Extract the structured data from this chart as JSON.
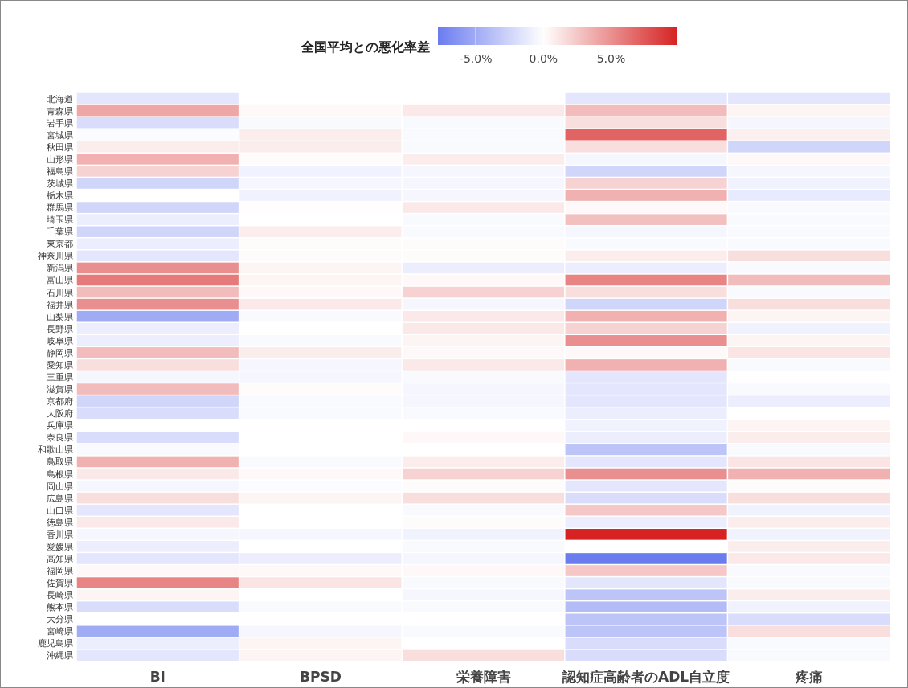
{
  "chart_data": {
    "type": "heatmap",
    "clabel": "全国平均との悪化率差",
    "categories": [
      "BI",
      "BPSD",
      "栄養障害",
      "認知症高齢者のADL自立度",
      "疼痛"
    ],
    "y_categories": [
      "北海道",
      "青森県",
      "岩手県",
      "宮城県",
      "秋田県",
      "山形県",
      "福島県",
      "茨城県",
      "栃木県",
      "群馬県",
      "埼玉県",
      "千葉県",
      "東京都",
      "神奈川県",
      "新潟県",
      "富山県",
      "石川県",
      "福井県",
      "山梨県",
      "長野県",
      "岐阜県",
      "静岡県",
      "愛知県",
      "三重県",
      "滋賀県",
      "京都府",
      "大阪府",
      "兵庫県",
      "奈良県",
      "和歌山県",
      "鳥取県",
      "島根県",
      "岡山県",
      "広島県",
      "山口県",
      "徳島県",
      "香川県",
      "愛媛県",
      "高知県",
      "福岡県",
      "佐賀県",
      "長崎県",
      "熊本県",
      "大分県",
      "宮崎県",
      "鹿児島県",
      "沖縄県"
    ],
    "cells": [
      [
        -1.5,
        0,
        0,
        -1.5,
        -1.5
      ],
      [
        4,
        0.3,
        1,
        3,
        0.5
      ],
      [
        -2,
        -0.3,
        -0.3,
        1.5,
        -0.5
      ],
      [
        -0.2,
        0.8,
        -0.3,
        7,
        0.7
      ],
      [
        0.8,
        0.8,
        -0.3,
        1.5,
        -2.5
      ],
      [
        3.5,
        0.2,
        0.8,
        -0.5,
        0.3
      ],
      [
        2,
        -0.8,
        -0.5,
        -2.5,
        -0.5
      ],
      [
        -2.5,
        -0.5,
        -0.5,
        2,
        -0.8
      ],
      [
        0,
        -0.8,
        -0.5,
        3.5,
        -1.2
      ],
      [
        -2.5,
        0.1,
        1,
        0.3,
        -0.3
      ],
      [
        -1,
        0,
        -0.3,
        2.8,
        -0.3
      ],
      [
        -2.5,
        0.8,
        -0.3,
        -0.5,
        -0.3
      ],
      [
        -1,
        0.2,
        0.2,
        -0.3,
        -0.3
      ],
      [
        -1.5,
        0.2,
        0.2,
        0.8,
        1.5
      ],
      [
        5,
        0.5,
        -1,
        -1,
        -0.3
      ],
      [
        6,
        0.5,
        0.3,
        5.5,
        3
      ],
      [
        3,
        0.3,
        2,
        1.5,
        -0.3
      ],
      [
        5,
        1,
        -0.5,
        -2.5,
        1.5
      ],
      [
        -5,
        -0.3,
        1,
        3.5,
        0.5
      ],
      [
        -1,
        0,
        1,
        2,
        -0.8
      ],
      [
        -1,
        -0.3,
        0.5,
        5,
        0.5
      ],
      [
        3,
        0.8,
        0.3,
        0.3,
        1.2
      ],
      [
        1.5,
        -0.5,
        1,
        3.5,
        -0.3
      ],
      [
        -0.5,
        -0.5,
        -0.3,
        -1.5,
        0
      ],
      [
        3,
        0.2,
        -0.5,
        -1.5,
        -0.3
      ],
      [
        -2.5,
        -0.3,
        -0.5,
        -1.5,
        -1
      ],
      [
        -2,
        -0.3,
        -0.3,
        -1,
        0
      ],
      [
        0,
        0,
        0,
        -0.8,
        0.5
      ],
      [
        -2,
        0,
        0.3,
        -1,
        0.8
      ],
      [
        -0.3,
        0,
        0,
        -3.5,
        -0.3
      ],
      [
        3.5,
        -0.3,
        0.8,
        -1.5,
        1.2
      ],
      [
        1,
        0.3,
        2,
        5,
        3.5
      ],
      [
        -0.5,
        -0.2,
        0.2,
        -1.5,
        0.2
      ],
      [
        1.5,
        0.5,
        1.5,
        -2,
        1.5
      ],
      [
        -1.5,
        0,
        -0.3,
        2.5,
        -0.8
      ],
      [
        1,
        0,
        0.2,
        -1,
        0.8
      ],
      [
        -0.5,
        -0.5,
        -0.8,
        9.9,
        -0.8
      ],
      [
        -1,
        0,
        -0.3,
        0,
        0.8
      ],
      [
        -1.5,
        -1,
        -0.5,
        -7.8,
        1
      ],
      [
        0.3,
        0.3,
        0.3,
        2.5,
        -0.3
      ],
      [
        5.5,
        1.2,
        -0.3,
        -1.5,
        -0.3
      ],
      [
        0.5,
        0,
        -0.5,
        -3.5,
        0.8
      ],
      [
        -2,
        -0.3,
        -0.3,
        -4,
        -0.8
      ],
      [
        0,
        0,
        0,
        -3.5,
        -2
      ],
      [
        -5,
        -0.5,
        -0.3,
        -3.5,
        1.5
      ],
      [
        -1,
        0.5,
        0,
        -2,
        -0.3
      ],
      [
        -1.5,
        0.5,
        1.5,
        -2,
        -0.3
      ]
    ],
    "clim": [
      -7.8,
      9.9
    ],
    "cticks": [
      {
        "value": -5,
        "label": "-5.0%"
      },
      {
        "value": 0,
        "label": "0.0%"
      },
      {
        "value": 5,
        "label": "5.0%"
      }
    ]
  }
}
